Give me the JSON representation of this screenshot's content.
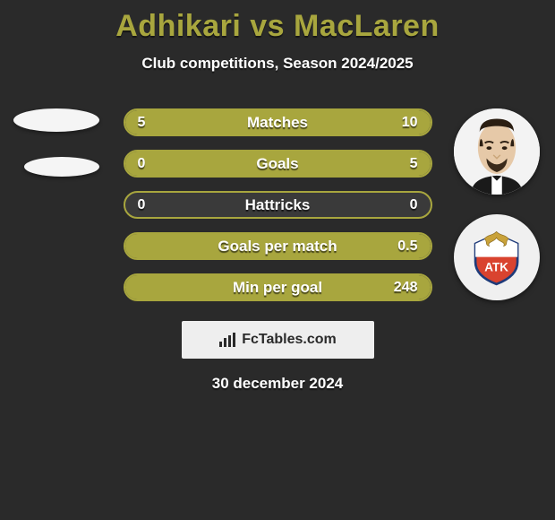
{
  "header": {
    "title": "Adhikari vs MacLaren",
    "title_color": "#a8a63e",
    "title_fontsize": 34,
    "subtitle": "Club competitions, Season 2024/2025",
    "subtitle_fontsize": 17
  },
  "players": {
    "left": {
      "name": "Adhikari",
      "avatar_kind": "placeholder-ellipses"
    },
    "right": {
      "name": "MacLaren",
      "avatar_kind": "photo-face",
      "crest_kind": "shield-eagle"
    }
  },
  "stats": {
    "bar_border_color": "#a8a63e",
    "left_fill_color": "#a8a63e",
    "right_fill_color": "#a8a63e",
    "track_color": "#3a3a3a",
    "label_fontsize": 17,
    "value_fontsize": 16,
    "rows": [
      {
        "label": "Matches",
        "left_value": "5",
        "right_value": "10",
        "left_pct": 33,
        "right_pct": 67
      },
      {
        "label": "Goals",
        "left_value": "0",
        "right_value": "5",
        "left_pct": 0,
        "right_pct": 100
      },
      {
        "label": "Hattricks",
        "left_value": "0",
        "right_value": "0",
        "left_pct": 0,
        "right_pct": 0
      },
      {
        "label": "Goals per match",
        "left_value": "",
        "right_value": "0.5",
        "left_pct": 0,
        "right_pct": 100
      },
      {
        "label": "Min per goal",
        "left_value": "",
        "right_value": "248",
        "left_pct": 0,
        "right_pct": 100
      }
    ]
  },
  "footer": {
    "watermark_text": "FcTables.com",
    "watermark_bg": "#eeeeee",
    "date": "30 december 2024"
  },
  "colors": {
    "background": "#2a2a2a",
    "avatar_background": "#f0f0f0",
    "text": "#ffffff"
  }
}
